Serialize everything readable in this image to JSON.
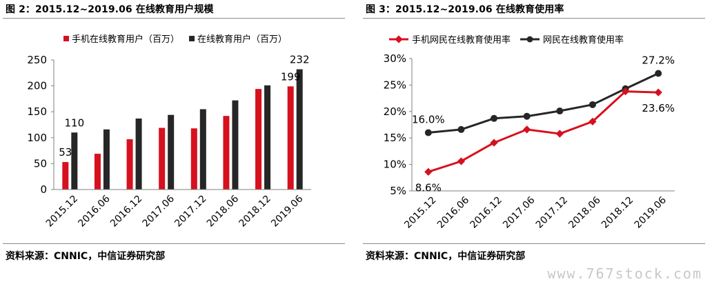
{
  "left": {
    "title": "图 2：2015.12~2019.06 在线教育用户规模",
    "source": "资料来源：CNNIC，中信证券研究部"
  },
  "right": {
    "title": "图 3：2015.12~2019.06 在线教育使用率",
    "source": "资料来源：CNNIC，中信证券研究部"
  },
  "watermark": "www.767stock.com",
  "chart_data": [
    {
      "type": "bar",
      "title": "",
      "categories": [
        "2015.12",
        "2016.06",
        "2016.12",
        "2017.06",
        "2017.12",
        "2018.06",
        "2018.12",
        "2019.06"
      ],
      "series": [
        {
          "name": "手机在线教育用户（百万）",
          "color": "#d7101e",
          "values": [
            53,
            69,
            97,
            119,
            118,
            142,
            194,
            199
          ]
        },
        {
          "name": "在线教育用户（百万）",
          "color": "#262626",
          "values": [
            110,
            116,
            137,
            144,
            155,
            172,
            201,
            232
          ]
        }
      ],
      "data_labels": [
        {
          "series": 0,
          "index": 0,
          "text": "53"
        },
        {
          "series": 1,
          "index": 0,
          "text": "110"
        },
        {
          "series": 0,
          "index": 7,
          "text": "199"
        },
        {
          "series": 1,
          "index": 7,
          "text": "232"
        }
      ],
      "yticks": [
        "0",
        "50",
        "100",
        "150",
        "200",
        "250"
      ],
      "ylim": [
        0,
        250
      ],
      "legend": "top",
      "grid": false
    },
    {
      "type": "line",
      "title": "",
      "categories": [
        "2015.12",
        "2016.06",
        "2016.12",
        "2017.06",
        "2017.12",
        "2018.06",
        "2018.12",
        "2019.06"
      ],
      "series": [
        {
          "name": "手机网民在线教育使用率",
          "color": "#d7101e",
          "marker": "diamond",
          "values": [
            8.6,
            10.6,
            14.1,
            16.6,
            15.8,
            18.1,
            23.8,
            23.6
          ]
        },
        {
          "name": "网民在线教育使用率",
          "color": "#262626",
          "marker": "circle",
          "values": [
            16.0,
            16.6,
            18.7,
            19.1,
            20.1,
            21.3,
            24.3,
            27.2
          ]
        }
      ],
      "data_labels": [
        {
          "series": 1,
          "index": 0,
          "text": "16.0%"
        },
        {
          "series": 0,
          "index": 0,
          "text": "8.6%"
        },
        {
          "series": 1,
          "index": 7,
          "text": "27.2%"
        },
        {
          "series": 0,
          "index": 7,
          "text": "23.6%"
        }
      ],
      "yticks": [
        "5%",
        "10%",
        "15%",
        "20%",
        "25%",
        "30%"
      ],
      "ylim": [
        5,
        30
      ],
      "legend": "top",
      "grid": false
    }
  ]
}
